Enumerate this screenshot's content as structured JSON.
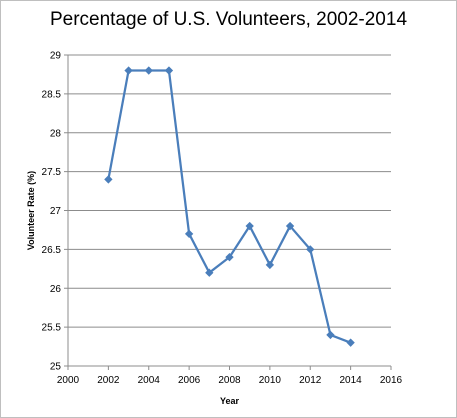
{
  "chart_data": {
    "type": "line",
    "title": "Percentage of U.S. Volunteers, 2002-2014",
    "xlabel": "Year",
    "ylabel": "Volunteer Rate (%)",
    "xlim": [
      2000,
      2016
    ],
    "ylim": [
      25,
      29
    ],
    "xticks": [
      2000,
      2002,
      2004,
      2006,
      2008,
      2010,
      2012,
      2014,
      2016
    ],
    "yticks": [
      25,
      25.5,
      26,
      26.5,
      27,
      27.5,
      28,
      28.5,
      29
    ],
    "grid": "horizontal",
    "legend": "none",
    "series_color": "#4a7ebb",
    "x": [
      2002,
      2003,
      2004,
      2005,
      2006,
      2007,
      2008,
      2009,
      2010,
      2011,
      2012,
      2013,
      2014
    ],
    "y": [
      27.4,
      28.8,
      28.8,
      28.8,
      26.7,
      26.2,
      26.4,
      26.8,
      26.3,
      26.8,
      26.5,
      25.4,
      25.3
    ]
  }
}
